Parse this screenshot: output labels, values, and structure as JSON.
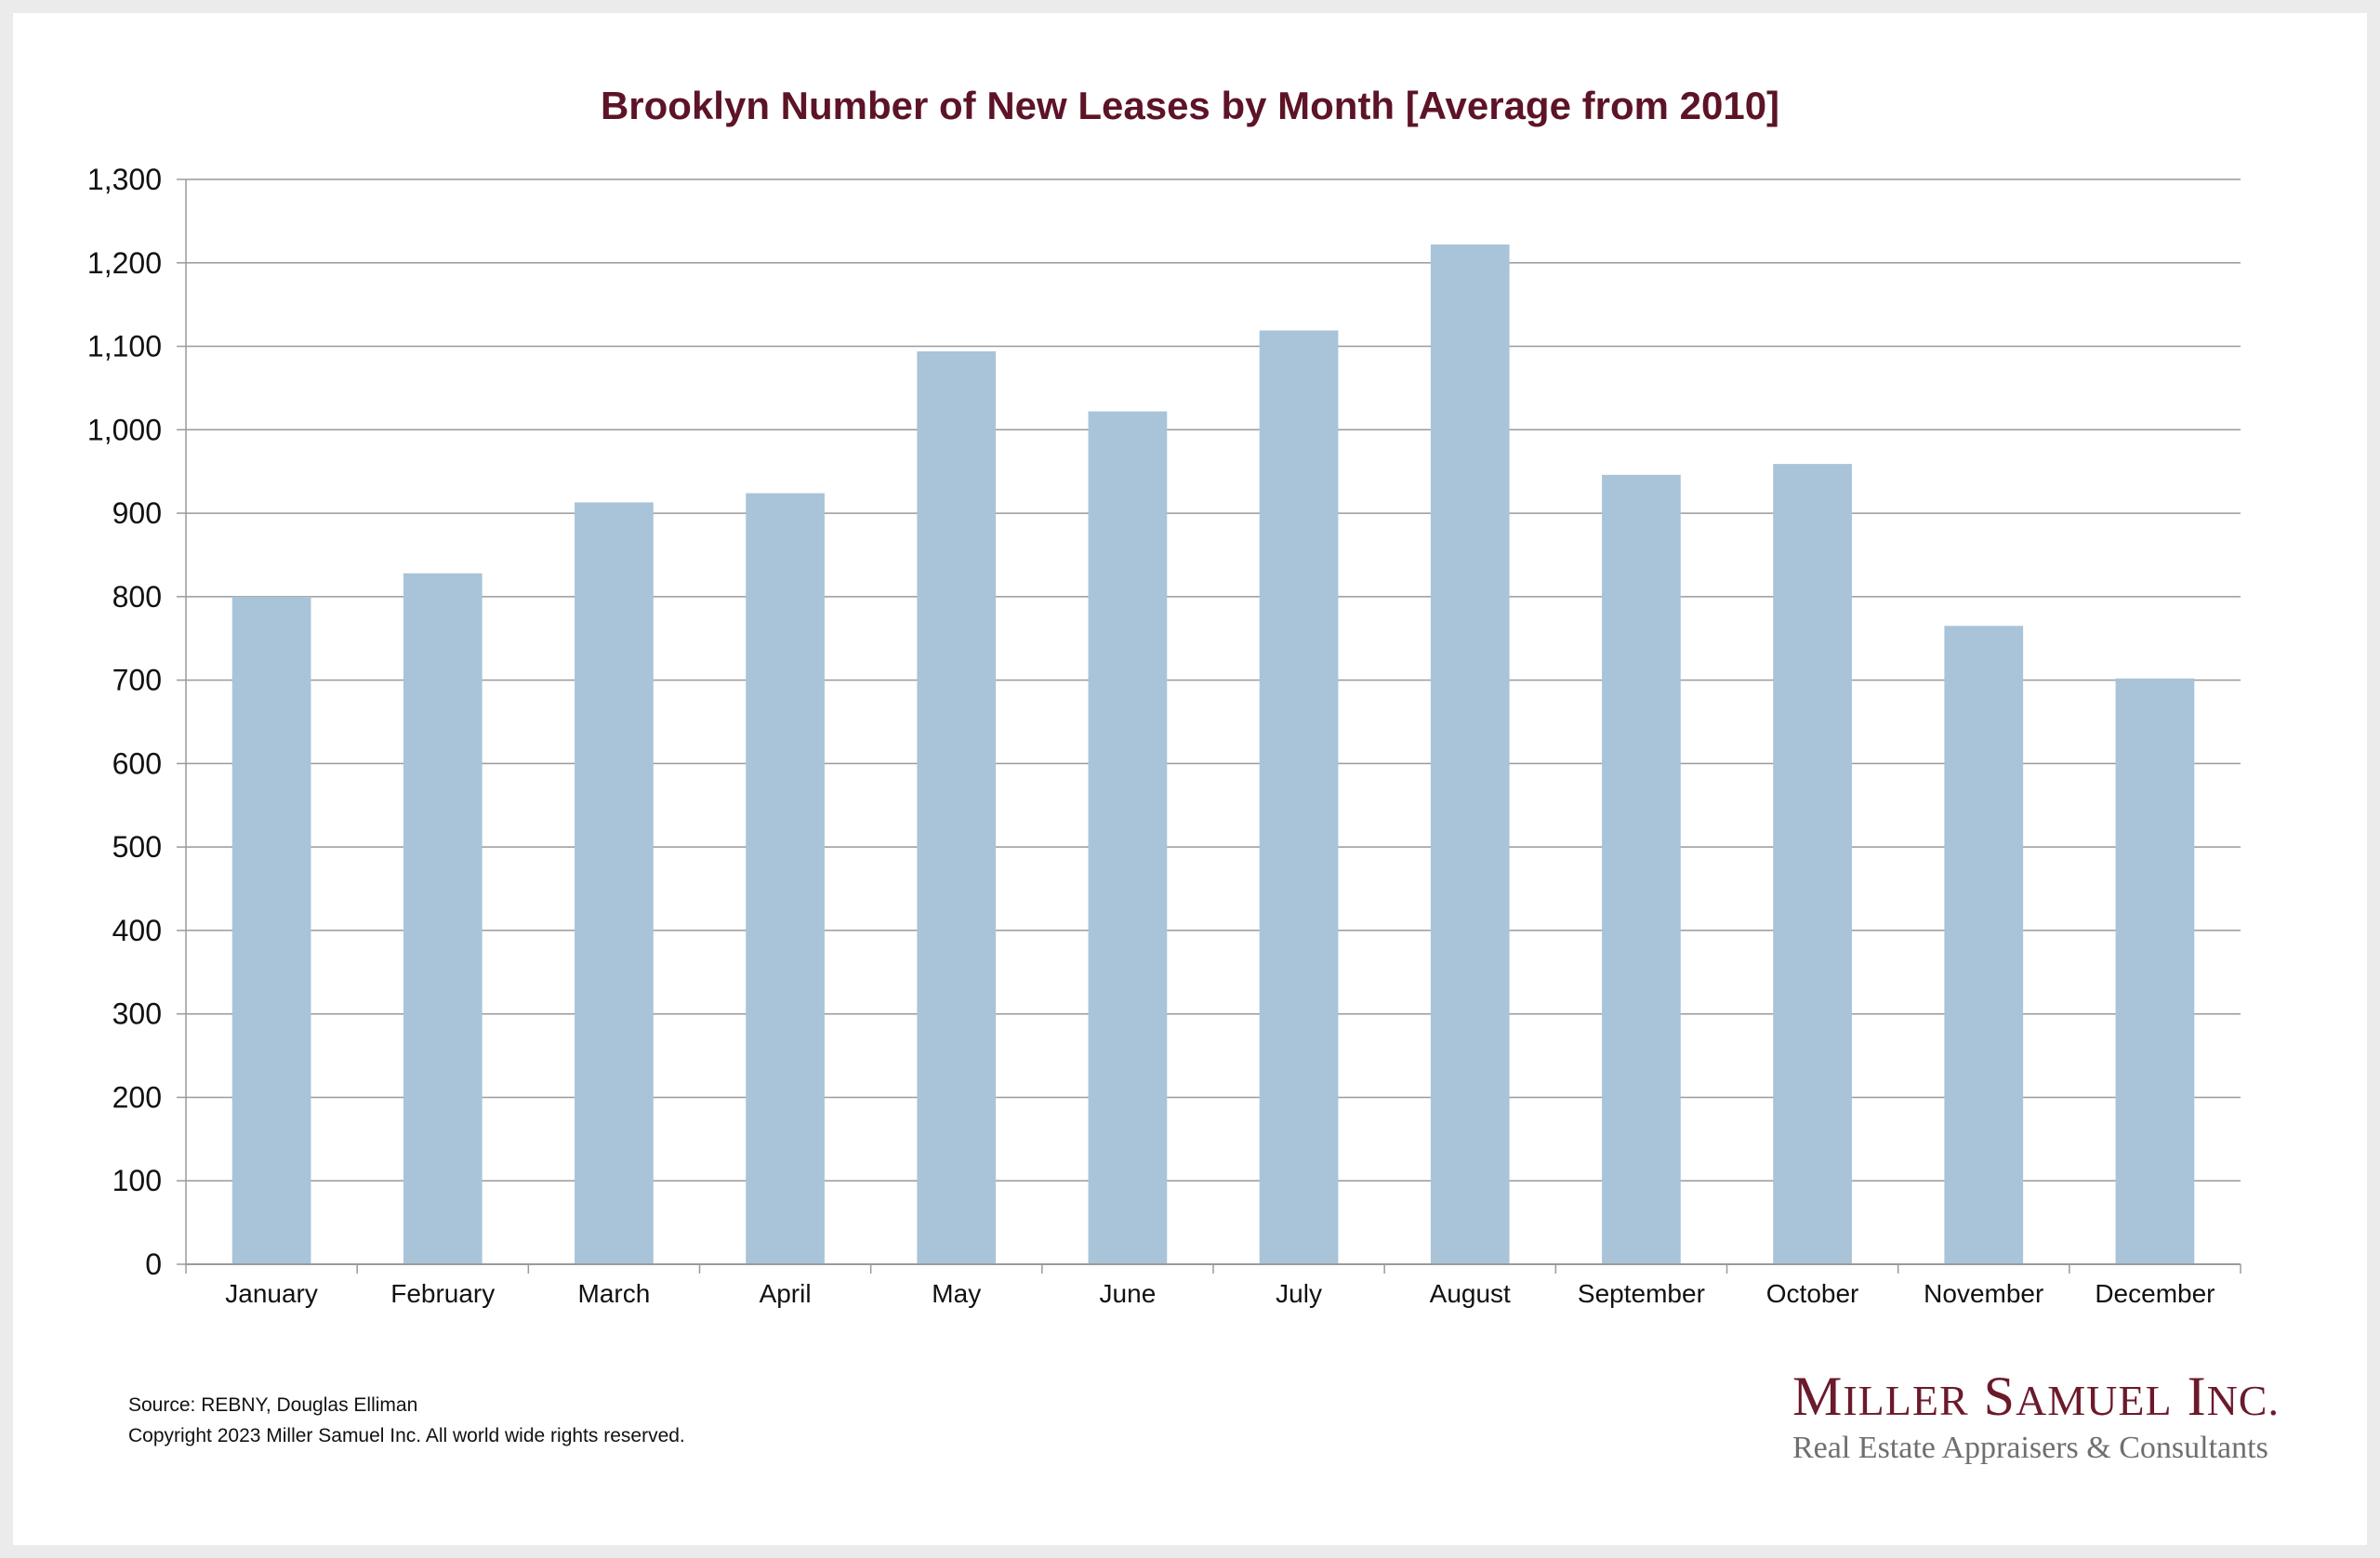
{
  "chart_data": {
    "type": "bar",
    "title": "Brooklyn Number of New Leases by Month [Average from 2010]",
    "categories": [
      "January",
      "February",
      "March",
      "April",
      "May",
      "June",
      "July",
      "August",
      "September",
      "October",
      "November",
      "December"
    ],
    "values": [
      800,
      828,
      913,
      924,
      1094,
      1022,
      1119,
      1222,
      946,
      959,
      765,
      702
    ],
    "ylim": [
      0,
      1300
    ],
    "yticks": [
      0,
      100,
      200,
      300,
      400,
      500,
      600,
      700,
      800,
      900,
      1000,
      1100,
      1200,
      1300
    ],
    "ytick_labels": [
      "0",
      "100",
      "200",
      "300",
      "400",
      "500",
      "600",
      "700",
      "800",
      "900",
      "1,000",
      "1,100",
      "1,200",
      "1,300"
    ],
    "xlabel": "",
    "ylabel": "",
    "grid": true,
    "bar_color": "#a9c4d8",
    "title_color": "#5c1426"
  },
  "footer": {
    "source": "Source: REBNY, Douglas Elliman",
    "copyright": "Copyright 2023 Miller Samuel Inc.  All world wide rights reserved."
  },
  "logo": {
    "name": "Miller Samuel Inc.",
    "tagline": "Real Estate Appraisers & Consultants"
  }
}
